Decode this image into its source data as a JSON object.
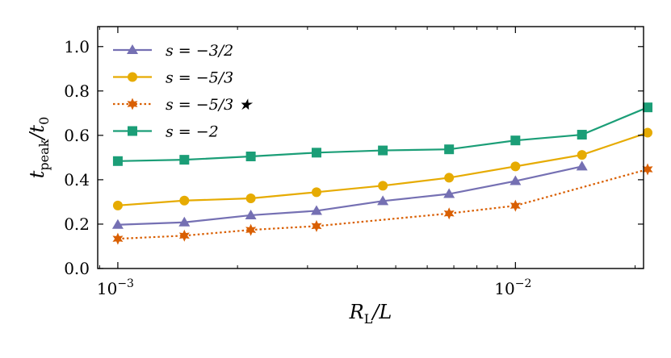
{
  "chart_data": {
    "type": "line",
    "xscale": "log",
    "xlim": [
      0.00089,
      0.021
    ],
    "ylim": [
      0.0,
      1.09
    ],
    "ylabel_base": "t",
    "ylabel_sub": "peak",
    "ylabel_rest": "/t",
    "ylabel_sub2": "0",
    "xlabel_base": "R",
    "xlabel_sub": "L",
    "xlabel_rest": "/L",
    "yticks": [
      {
        "value": 0.0,
        "label": "0.0"
      },
      {
        "value": 0.2,
        "label": "0.2"
      },
      {
        "value": 0.4,
        "label": "0.4"
      },
      {
        "value": 0.6,
        "label": "0.6"
      },
      {
        "value": 0.8,
        "label": "0.8"
      },
      {
        "value": 1.0,
        "label": "1.0"
      }
    ],
    "xticks_major": [
      {
        "value": 0.001,
        "base": "10",
        "exp": "−3"
      },
      {
        "value": 0.01,
        "base": "10",
        "exp": "−2"
      }
    ],
    "legend_position": "top-left",
    "series": [
      {
        "name": "s = −3/2",
        "color": "#7570b3",
        "linestyle": "solid",
        "marker": "triangle",
        "x": [
          0.001,
          0.00147,
          0.00216,
          0.00316,
          0.00464,
          0.00681,
          0.01,
          0.0147
        ],
        "y": [
          0.197,
          0.208,
          0.24,
          0.26,
          0.304,
          0.336,
          0.394,
          0.46
        ]
      },
      {
        "name": "s = −5/3",
        "color": "#e6ab02",
        "linestyle": "solid",
        "marker": "circle",
        "x": [
          0.001,
          0.00147,
          0.00216,
          0.00316,
          0.00464,
          0.00681,
          0.01,
          0.0147,
          0.0215
        ],
        "y": [
          0.284,
          0.306,
          0.316,
          0.344,
          0.373,
          0.409,
          0.46,
          0.512,
          0.612
        ]
      },
      {
        "name": "s = −5/3 ★",
        "color": "#d95f02",
        "linestyle": "dotted",
        "marker": "star",
        "x": [
          0.001,
          0.00147,
          0.00216,
          0.00316,
          0.00681,
          0.01,
          0.0215
        ],
        "y": [
          0.134,
          0.148,
          0.174,
          0.191,
          0.248,
          0.283,
          0.447
        ]
      },
      {
        "name": "s = −2",
        "color": "#1b9e77",
        "linestyle": "solid",
        "marker": "square",
        "x": [
          0.001,
          0.00147,
          0.00216,
          0.00316,
          0.00464,
          0.00681,
          0.01,
          0.0147,
          0.0215
        ],
        "y": [
          0.484,
          0.49,
          0.505,
          0.522,
          0.532,
          0.537,
          0.577,
          0.603,
          0.726
        ]
      }
    ]
  }
}
